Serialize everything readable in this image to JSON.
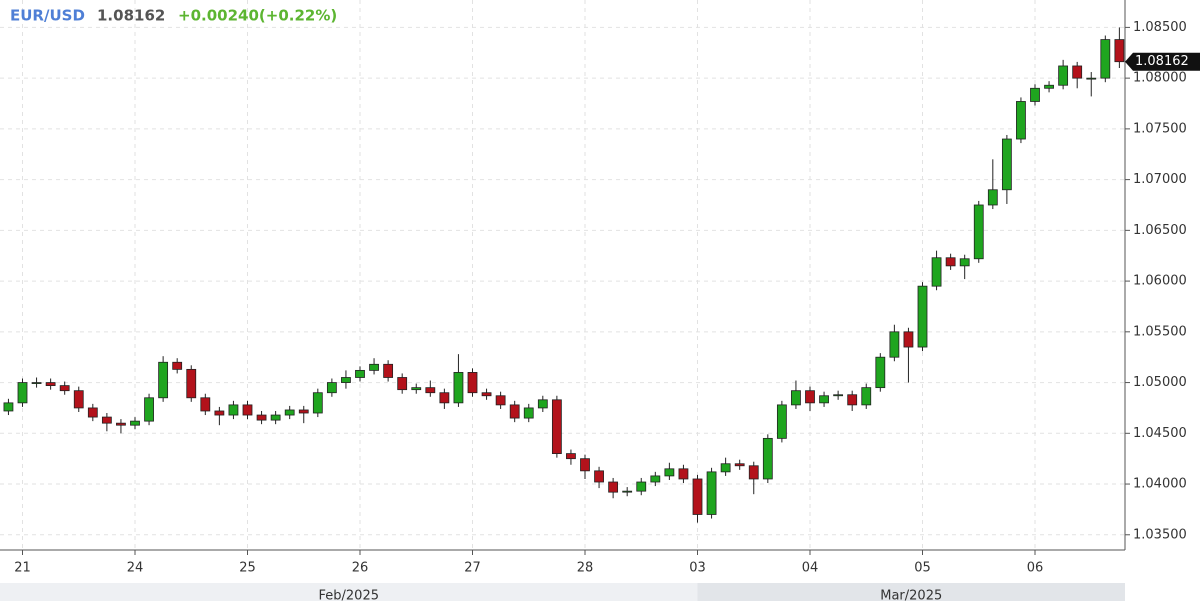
{
  "chart_data": {
    "type": "candlestick",
    "symbol": "EUR/USD",
    "change_label": "+0.00240(+0.22%)",
    "x": [
      -0.125,
      0,
      0.125,
      0.25,
      0.375,
      0.5,
      0.625,
      0.75,
      0.875,
      1,
      1.125,
      1.25,
      1.375,
      1.5,
      1.625,
      1.75,
      1.875,
      2,
      2.125,
      2.25,
      2.375,
      2.5,
      2.625,
      2.75,
      2.875,
      3,
      3.125,
      3.25,
      3.375,
      3.5,
      3.625,
      3.75,
      3.875,
      4,
      4.125,
      4.25,
      4.375,
      4.5,
      4.625,
      4.75,
      4.875,
      5,
      5.125,
      5.25,
      5.375,
      5.5,
      5.625,
      5.75,
      5.875,
      6,
      6.125,
      6.25,
      6.375,
      6.5,
      6.625,
      6.75,
      6.875,
      7,
      7.125,
      7.25,
      7.375,
      7.5,
      7.625,
      7.75,
      7.875,
      8,
      8.125,
      8.25,
      8.375,
      8.5,
      8.625,
      8.75,
      8.875,
      9,
      9.125,
      9.25,
      9.375,
      9.5,
      9.625,
      9.75
    ],
    "open": [
      1.0472,
      1.048,
      1.05,
      1.05,
      1.0497,
      1.0492,
      1.0475,
      1.0466,
      1.046,
      1.0458,
      1.0462,
      1.0485,
      1.052,
      1.0513,
      1.0485,
      1.0472,
      1.0468,
      1.0478,
      1.0468,
      1.0463,
      1.0468,
      1.0473,
      1.047,
      1.049,
      1.05,
      1.0505,
      1.0512,
      1.0518,
      1.0505,
      1.0493,
      1.0495,
      1.049,
      1.048,
      1.051,
      1.049,
      1.0487,
      1.0478,
      1.0465,
      1.0475,
      1.0483,
      1.043,
      1.0425,
      1.0413,
      1.0402,
      1.0392,
      1.0393,
      1.0402,
      1.0408,
      1.0415,
      1.0405,
      1.037,
      1.0412,
      1.042,
      1.0418,
      1.0405,
      1.0445,
      1.0478,
      1.0492,
      1.048,
      1.0487,
      1.0488,
      1.0478,
      1.0495,
      1.0525,
      1.055,
      1.0535,
      1.0595,
      1.0623,
      1.0615,
      1.0622,
      1.0675,
      1.069,
      1.074,
      1.0777,
      1.079,
      1.0793,
      1.0812,
      1.08,
      1.08,
      1.0838
    ],
    "high": [
      1.0484,
      1.0504,
      1.0505,
      1.0504,
      1.0501,
      1.0496,
      1.0479,
      1.047,
      1.0464,
      1.0466,
      1.0489,
      1.0526,
      1.0524,
      1.0517,
      1.0489,
      1.0476,
      1.0482,
      1.0482,
      1.0472,
      1.0472,
      1.0477,
      1.0477,
      1.0494,
      1.0504,
      1.0512,
      1.0516,
      1.0524,
      1.0522,
      1.0509,
      1.0499,
      1.0502,
      1.0494,
      1.0528,
      1.0514,
      1.0494,
      1.0491,
      1.0482,
      1.0479,
      1.0487,
      1.0487,
      1.0434,
      1.0429,
      1.0417,
      1.0406,
      1.0397,
      1.0406,
      1.0412,
      1.0421,
      1.0419,
      1.0409,
      1.0416,
      1.0426,
      1.0424,
      1.0422,
      1.0449,
      1.0482,
      1.0502,
      1.0496,
      1.0491,
      1.0492,
      1.0492,
      1.0499,
      1.0529,
      1.0557,
      1.0554,
      1.0599,
      1.063,
      1.0627,
      1.0626,
      1.0679,
      1.072,
      1.0744,
      1.0781,
      1.0794,
      1.0797,
      1.0818,
      1.0816,
      1.0806,
      1.0842,
      1.085
    ],
    "low": [
      1.0468,
      1.0476,
      1.0495,
      1.0493,
      1.0488,
      1.0471,
      1.0462,
      1.0452,
      1.045,
      1.0454,
      1.0458,
      1.0481,
      1.0509,
      1.0481,
      1.0468,
      1.0458,
      1.0464,
      1.0464,
      1.0459,
      1.0459,
      1.0464,
      1.046,
      1.0466,
      1.0486,
      1.0494,
      1.0501,
      1.0508,
      1.0501,
      1.0489,
      1.0489,
      1.0486,
      1.0474,
      1.0476,
      1.0486,
      1.0483,
      1.0474,
      1.0461,
      1.0461,
      1.0471,
      1.0426,
      1.0419,
      1.0405,
      1.0396,
      1.0386,
      1.0388,
      1.0389,
      1.0398,
      1.0404,
      1.0401,
      1.0362,
      1.0366,
      1.0408,
      1.0414,
      1.039,
      1.0401,
      1.0441,
      1.0474,
      1.0472,
      1.0476,
      1.0483,
      1.0472,
      1.0474,
      1.0491,
      1.0521,
      1.05,
      1.0531,
      1.0591,
      1.0611,
      1.0602,
      1.0618,
      1.0671,
      1.0676,
      1.0736,
      1.0773,
      1.0786,
      1.0789,
      1.079,
      1.0782,
      1.0796,
      1.081
    ],
    "close": [
      1.048,
      1.05,
      1.05,
      1.0497,
      1.0492,
      1.0475,
      1.0466,
      1.046,
      1.0458,
      1.0462,
      1.0485,
      1.052,
      1.0513,
      1.0485,
      1.0472,
      1.0468,
      1.0478,
      1.0468,
      1.0463,
      1.0468,
      1.0473,
      1.047,
      1.049,
      1.05,
      1.0505,
      1.0512,
      1.0518,
      1.0505,
      1.0493,
      1.0495,
      1.049,
      1.048,
      1.051,
      1.049,
      1.0487,
      1.0478,
      1.0465,
      1.0475,
      1.0483,
      1.043,
      1.0425,
      1.0413,
      1.0402,
      1.0392,
      1.0393,
      1.0402,
      1.0408,
      1.0415,
      1.0405,
      1.037,
      1.0412,
      1.042,
      1.0418,
      1.0405,
      1.0445,
      1.0478,
      1.0492,
      1.048,
      1.0487,
      1.0488,
      1.0478,
      1.0495,
      1.0525,
      1.055,
      1.0535,
      1.0595,
      1.0623,
      1.0615,
      1.0622,
      1.0675,
      1.069,
      1.074,
      1.0777,
      1.079,
      1.0793,
      1.0812,
      1.08,
      1.08,
      1.0838,
      1.08162
    ],
    "up_color": "#1fa51f",
    "down_color": "#b3121b",
    "xlim": [
      -0.2,
      9.8
    ],
    "xticks": [
      {
        "value": 0,
        "label": "21"
      },
      {
        "value": 1,
        "label": "24"
      },
      {
        "value": 2,
        "label": "25"
      },
      {
        "value": 3,
        "label": "26"
      },
      {
        "value": 4,
        "label": "27"
      },
      {
        "value": 5,
        "label": "28"
      },
      {
        "value": 6,
        "label": "03"
      },
      {
        "value": 7,
        "label": "04"
      },
      {
        "value": 8,
        "label": "05"
      },
      {
        "value": 9,
        "label": "06"
      }
    ],
    "months": [
      "Feb/2025",
      "Mar/2025"
    ],
    "month_break": 6,
    "ylim": [
      1.0335,
      1.0877
    ],
    "yticks": [
      {
        "value": 1.035,
        "label": "1.03500"
      },
      {
        "value": 1.04,
        "label": "1.04000"
      },
      {
        "value": 1.045,
        "label": "1.04500"
      },
      {
        "value": 1.05,
        "label": "1.05000"
      },
      {
        "value": 1.055,
        "label": "1.05500"
      },
      {
        "value": 1.06,
        "label": "1.06000"
      },
      {
        "value": 1.065,
        "label": "1.06500"
      },
      {
        "value": 1.07,
        "label": "1.07000"
      },
      {
        "value": 1.075,
        "label": "1.07500"
      },
      {
        "value": 1.08,
        "label": "1.08000"
      },
      {
        "value": 1.085,
        "label": "1.08500"
      }
    ],
    "grid": true
  }
}
